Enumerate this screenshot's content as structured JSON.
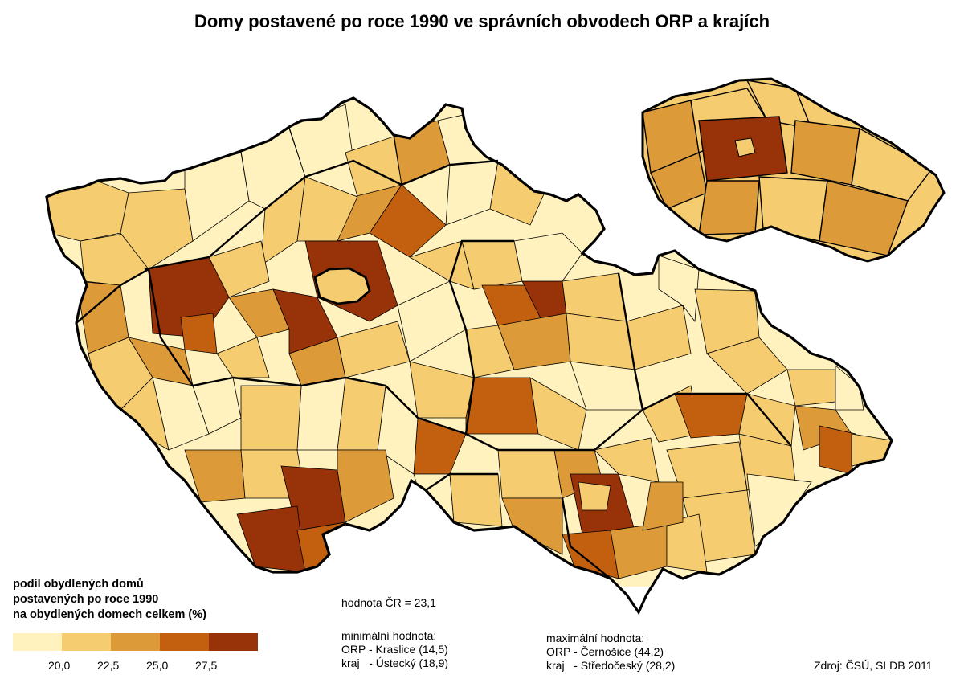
{
  "title": "Domy postavené po roce 1990 ve správních obvodech ORP a krajích",
  "legend": {
    "title_lines": [
      "podíl obydlených domů",
      "postavených po roce 1990",
      "na obydlených domech celkem (%)"
    ],
    "colors": [
      "#fff2bf",
      "#f5cc70",
      "#dd9a38",
      "#c2600f",
      "#983208"
    ],
    "ticks": [
      "20,0",
      "22,5",
      "25,0",
      "27,5"
    ]
  },
  "national": {
    "text": "hodnota ČR = 23,1"
  },
  "minimum": {
    "heading": "minimální hodnota:",
    "orp": "ORP - Kraslice (14,5)",
    "kraj": "kraj   - Ústecký (18,9)"
  },
  "maximum": {
    "heading": "maximální hodnota:",
    "orp": "ORP - Černošice (44,2)",
    "kraj": "kraj   - Středočeský (28,2)"
  },
  "source": "Zdroj: ČSÚ, SLDB 2011",
  "map": {
    "outline_color": "#000000",
    "highlighted_class": 5,
    "inset_region_classes": [
      3,
      2,
      2,
      3,
      5,
      3,
      2,
      3,
      2,
      3
    ]
  }
}
